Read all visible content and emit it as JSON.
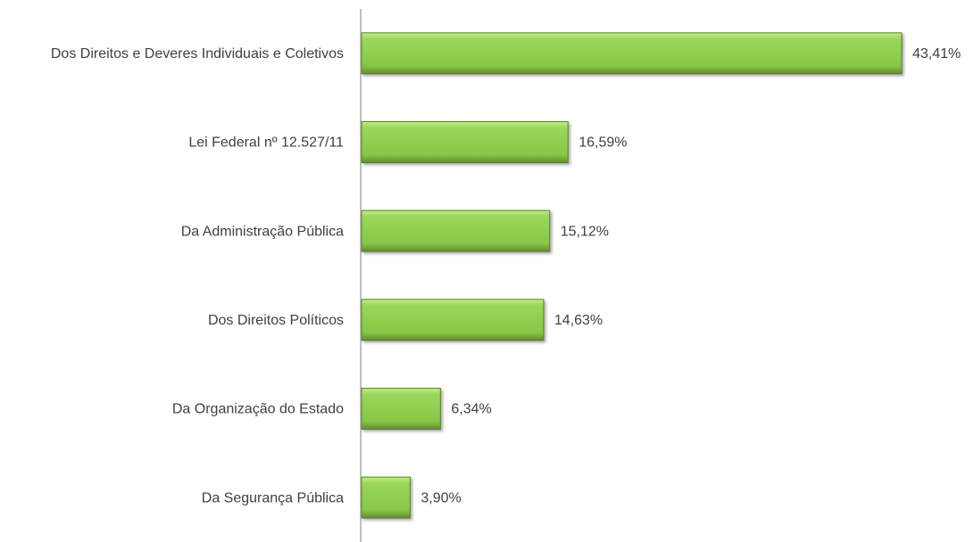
{
  "chart_data": {
    "type": "hbar",
    "categories": [
      "Dos Direitos e Deveres Individuais e Coletivos",
      "Lei Federal nº 12.527/11",
      "Da Administração Pública",
      "Dos Direitos Políticos",
      "Da Organização do Estado",
      "Da Segurança Pública"
    ],
    "values": [
      43.41,
      16.59,
      15.12,
      14.63,
      6.34,
      3.9
    ],
    "value_labels": [
      "43,41%",
      "16,59%",
      "15,12%",
      "14,63%",
      "6,34%",
      "3,90%"
    ],
    "color": "#92d050"
  }
}
